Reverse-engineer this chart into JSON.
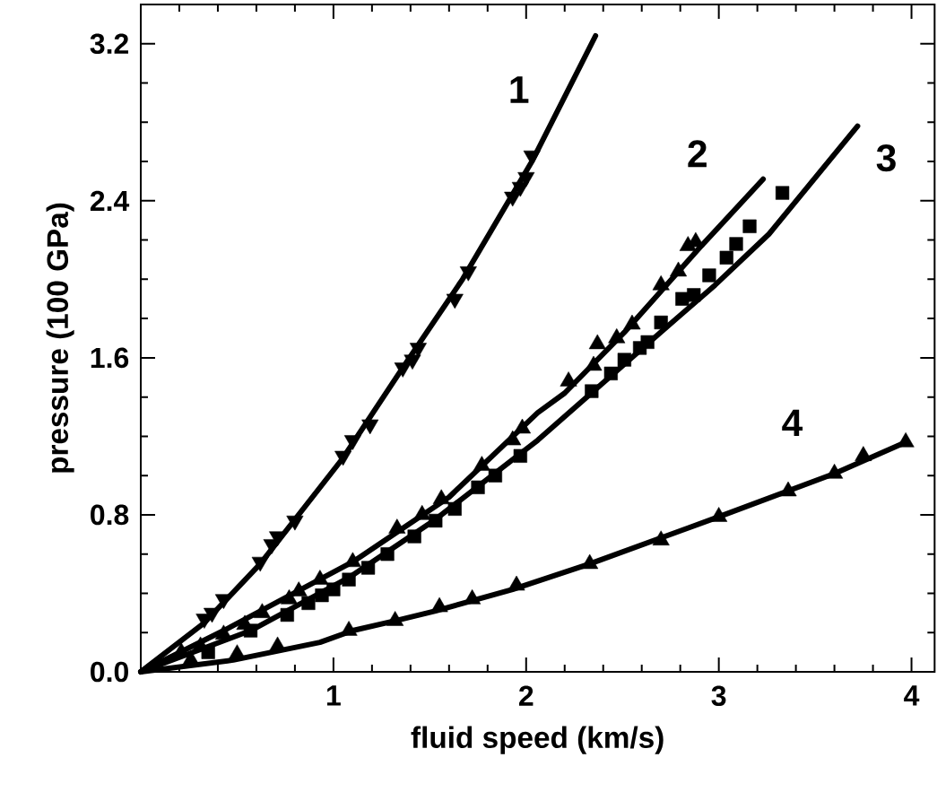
{
  "chart_data": {
    "type": "line",
    "xlabel": "fluid speed (km/s)",
    "ylabel": "pressure (100 GPa)",
    "xlim": [
      0,
      4.12
    ],
    "ylim": [
      0,
      3.4
    ],
    "xticks": [
      {
        "value": 0.2,
        "label": null
      },
      {
        "value": 0.4,
        "label": null
      },
      {
        "value": 0.6,
        "label": null
      },
      {
        "value": 0.8,
        "label": null
      },
      1,
      {
        "value": 1.2,
        "label": null
      },
      {
        "value": 1.4,
        "label": null
      },
      {
        "value": 1.6,
        "label": null
      },
      {
        "value": 1.8,
        "label": null
      },
      2,
      {
        "value": 2.2,
        "label": null
      },
      {
        "value": 2.4,
        "label": null
      },
      {
        "value": 2.6,
        "label": null
      },
      {
        "value": 2.8,
        "label": null
      },
      3,
      {
        "value": 3.2,
        "label": null
      },
      {
        "value": 3.4,
        "label": null
      },
      {
        "value": 3.6,
        "label": null
      },
      {
        "value": 3.8,
        "label": null
      },
      4
    ],
    "yticks": [
      {
        "value": 0,
        "label": "0.0"
      },
      {
        "value": 0.2,
        "label": null
      },
      {
        "value": 0.4,
        "label": null
      },
      {
        "value": 0.6,
        "label": null
      },
      0.8,
      {
        "value": 1.0,
        "label": null
      },
      {
        "value": 1.2,
        "label": null
      },
      {
        "value": 1.4,
        "label": null
      },
      1.6,
      {
        "value": 1.8,
        "label": null
      },
      {
        "value": 2.0,
        "label": null
      },
      {
        "value": 2.2,
        "label": null
      },
      2.4,
      {
        "value": 2.6,
        "label": null
      },
      {
        "value": 2.8,
        "label": null
      },
      {
        "value": 3.0,
        "label": null
      },
      3.2
    ],
    "series": [
      {
        "type": "scatter",
        "marker": "triangle_down",
        "color": "#000000",
        "x": [
          0.33,
          0.37,
          0.43,
          0.62,
          0.68,
          0.71,
          0.8,
          1.05,
          1.1,
          1.19,
          1.36,
          1.41,
          1.44,
          1.63,
          1.7,
          1.93,
          1.97,
          2.0,
          2.03
        ],
        "values": [
          0.27,
          0.3,
          0.37,
          0.56,
          0.65,
          0.69,
          0.77,
          1.1,
          1.18,
          1.26,
          1.55,
          1.59,
          1.65,
          1.9,
          2.04,
          2.42,
          2.47,
          2.52,
          2.63
        ]
      },
      {
        "type": "scatter",
        "marker": "triangle",
        "color": "#000000",
        "x": [
          0.21,
          0.31,
          0.43,
          0.54,
          0.63,
          0.77,
          0.82,
          0.93,
          1.1,
          1.33,
          1.46,
          1.56,
          1.77,
          1.93,
          1.98,
          2.22,
          2.35,
          2.37,
          2.47,
          2.55,
          2.7,
          2.79,
          2.84,
          2.88
        ],
        "values": [
          0.1,
          0.13,
          0.19,
          0.24,
          0.3,
          0.37,
          0.41,
          0.47,
          0.56,
          0.73,
          0.8,
          0.88,
          1.05,
          1.18,
          1.24,
          1.48,
          1.56,
          1.67,
          1.7,
          1.77,
          1.97,
          2.04,
          2.17,
          2.19
        ]
      },
      {
        "type": "scatter",
        "marker": "square",
        "color": "#000000",
        "x": [
          0.35,
          0.57,
          0.76,
          0.87,
          0.94,
          1.0,
          1.08,
          1.18,
          1.28,
          1.42,
          1.53,
          1.63,
          1.75,
          1.84,
          1.97,
          2.34,
          2.44,
          2.51,
          2.59,
          2.63,
          2.7,
          2.81,
          2.87,
          2.95,
          3.04,
          3.09,
          3.16,
          3.33
        ],
        "values": [
          0.1,
          0.21,
          0.29,
          0.35,
          0.39,
          0.42,
          0.47,
          0.53,
          0.6,
          0.69,
          0.77,
          0.83,
          0.94,
          1.0,
          1.1,
          1.43,
          1.52,
          1.59,
          1.65,
          1.68,
          1.78,
          1.9,
          1.92,
          2.02,
          2.11,
          2.18,
          2.27,
          2.44
        ]
      },
      {
        "type": "scatter",
        "marker": "triangle",
        "color": "#000000",
        "x": [
          0.26,
          0.5,
          0.71,
          1.08,
          1.32,
          1.55,
          1.72,
          1.95,
          2.33,
          2.7,
          3.0,
          3.36,
          3.6,
          3.75,
          3.97
        ],
        "values": [
          0.06,
          0.09,
          0.13,
          0.21,
          0.26,
          0.33,
          0.37,
          0.44,
          0.55,
          0.67,
          0.79,
          0.92,
          1.01,
          1.1,
          1.17
        ]
      },
      {
        "name": "1",
        "marker": "none",
        "color": "#000000",
        "x": [
          0,
          0.33,
          0.62,
          1.05,
          1.36,
          1.67,
          2.03,
          2.36
        ],
        "values": [
          0,
          0.25,
          0.55,
          1.09,
          1.55,
          2.0,
          2.6,
          3.24
        ]
      },
      {
        "name": "2",
        "marker": "none",
        "color": "#000000",
        "x": [
          0,
          0.43,
          1.1,
          1.6,
          2.06,
          2.2,
          2.51,
          2.9,
          3.23
        ],
        "values": [
          0,
          0.21,
          0.56,
          0.89,
          1.32,
          1.42,
          1.73,
          2.16,
          2.51
        ]
      },
      {
        "name": "3",
        "marker": "none",
        "color": "#000000",
        "x": [
          0,
          0.57,
          1.08,
          1.52,
          2.06,
          2.71,
          2.98,
          3.26,
          3.72
        ],
        "values": [
          0,
          0.21,
          0.48,
          0.77,
          1.18,
          1.74,
          1.97,
          2.23,
          2.78
        ]
      },
      {
        "name": "4",
        "marker": "none",
        "color": "#000000",
        "x": [
          0,
          0.48,
          0.93,
          1.1,
          1.32,
          1.53,
          1.93,
          2.33,
          3.0,
          3.6,
          3.97
        ],
        "values": [
          0,
          0.06,
          0.15,
          0.21,
          0.26,
          0.31,
          0.42,
          0.55,
          0.79,
          1.01,
          1.17
        ]
      }
    ]
  }
}
